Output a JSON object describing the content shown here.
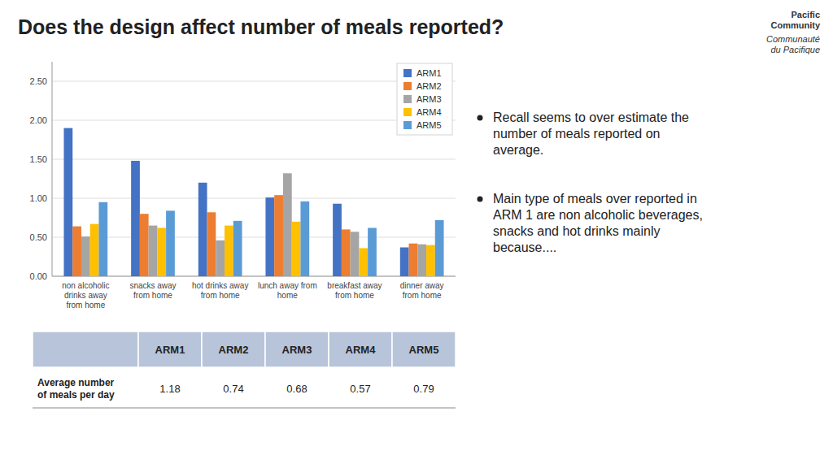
{
  "chart_data": {
    "type": "bar",
    "title": "Does the design affect number of meals reported?",
    "categories": [
      "non alcoholic\ndrinks away\nfrom home",
      "snacks away\nfrom home",
      "hot drinks away\nfrom home",
      "lunch away from\nhome",
      "breakfast away\nfrom home",
      "dinner away\nfrom home"
    ],
    "series": [
      {
        "name": "ARM1",
        "color": "#4472C4",
        "values": [
          1.9,
          1.48,
          1.2,
          1.01,
          0.93,
          0.37
        ]
      },
      {
        "name": "ARM2",
        "color": "#ED7D31",
        "values": [
          0.64,
          0.8,
          0.82,
          1.04,
          0.6,
          0.42
        ]
      },
      {
        "name": "ARM3",
        "color": "#A5A5A5",
        "values": [
          0.51,
          0.65,
          0.46,
          1.32,
          0.57,
          0.41
        ]
      },
      {
        "name": "ARM4",
        "color": "#FFC000",
        "values": [
          0.67,
          0.62,
          0.65,
          0.7,
          0.36,
          0.4
        ]
      },
      {
        "name": "ARM5",
        "color": "#5B9BD5",
        "values": [
          0.95,
          0.84,
          0.71,
          0.96,
          0.62,
          0.72
        ]
      }
    ],
    "ylim": [
      0,
      2.75
    ],
    "yticks": [
      {
        "value": 0,
        "label": "0.00"
      },
      {
        "value": 0.5,
        "label": "0.50"
      },
      {
        "value": 1,
        "label": "1.00"
      },
      {
        "value": 1.5,
        "label": "1.50"
      },
      {
        "value": 2,
        "label": "2.00"
      },
      {
        "value": 2.5,
        "label": "2.50"
      }
    ],
    "grid": true,
    "legend": "upper right"
  },
  "table": {
    "header": [
      "ARM1",
      "ARM2",
      "ARM3",
      "ARM4",
      "ARM5"
    ],
    "header_color": "#B8C4D9",
    "row_label": "Average number\nof meals per day",
    "values": [
      1.18,
      0.74,
      0.68,
      0.57,
      0.79
    ]
  },
  "bullet_points": [
    "Recall seems to over estimate the\nnumber of meals reported on\naverage.",
    "Main type of meals over reported in\nARM 1 are non alcoholic beverages,\nsnacks and hot drinks mainly\nbecause...."
  ],
  "logo": [
    "Pacific\nCommunity",
    "Communauté\ndu Pacifique"
  ]
}
